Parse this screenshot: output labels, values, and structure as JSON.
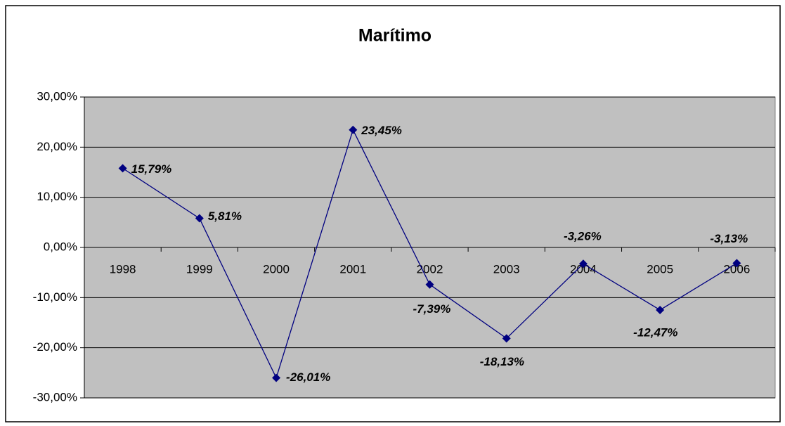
{
  "chart_data": {
    "type": "line",
    "title": "Marítimo",
    "categories": [
      "1998",
      "1999",
      "2000",
      "2001",
      "2002",
      "2003",
      "2004",
      "2005",
      "2006"
    ],
    "values": [
      15.79,
      5.81,
      -26.01,
      23.45,
      -7.39,
      -18.13,
      -3.26,
      -12.47,
      -3.13
    ],
    "value_labels": [
      "15,79%",
      "5,81%",
      "-26,01%",
      "23,45%",
      "-7,39%",
      "-18,13%",
      "-3,26%",
      "-12,47%",
      "-3,13%"
    ],
    "color": "#000080",
    "ylim": [
      -30,
      30
    ],
    "yticks": [
      {
        "value": -30,
        "label": "-30,00%"
      },
      {
        "value": -20,
        "label": "-20,00%"
      },
      {
        "value": -10,
        "label": "-10,00%"
      },
      {
        "value": 0,
        "label": "0,00%"
      },
      {
        "value": 10,
        "label": "10,00%"
      },
      {
        "value": 20,
        "label": "20,00%"
      },
      {
        "value": 30,
        "label": "30,00%"
      }
    ],
    "grid": true
  }
}
